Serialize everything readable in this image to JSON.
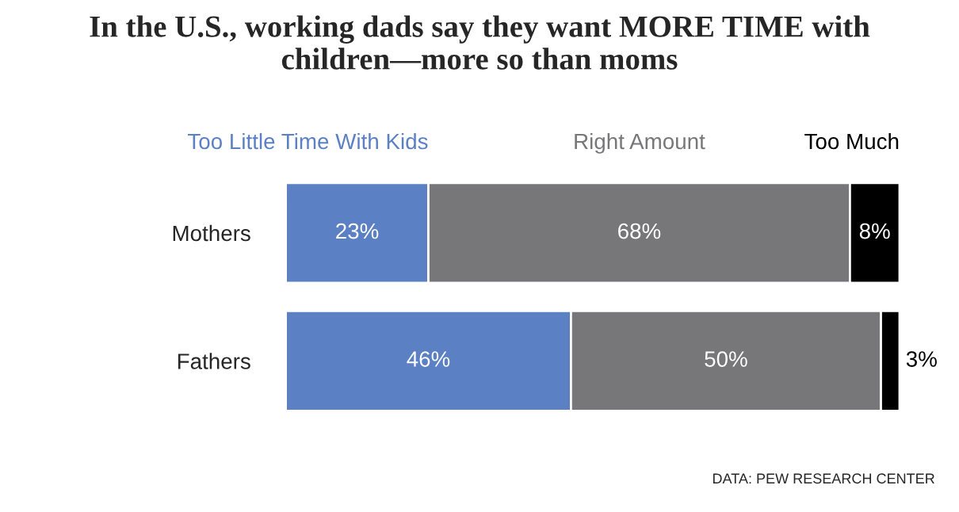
{
  "chart_data": {
    "type": "bar",
    "orientation": "horizontal",
    "stacked": true,
    "title": "In the U.S., working dads say they want MORE TIME with children—more so than moms",
    "categories": [
      "Mothers",
      "Fathers"
    ],
    "series": [
      {
        "name": "Too Little Time With Kids",
        "color": "#5b80c4",
        "values": [
          23,
          46
        ],
        "value_labels": [
          "23%",
          "46%"
        ]
      },
      {
        "name": "Right Amount",
        "color": "#77777a",
        "values": [
          68,
          50
        ],
        "value_labels": [
          "68%",
          "50%"
        ]
      },
      {
        "name": "Too Much",
        "color": "#000000",
        "values": [
          8,
          3
        ],
        "value_labels": [
          "8%",
          "3%"
        ]
      }
    ],
    "legend": "top",
    "annotations": [
      "DATA: PEW RESEARCH CENTER"
    ]
  }
}
